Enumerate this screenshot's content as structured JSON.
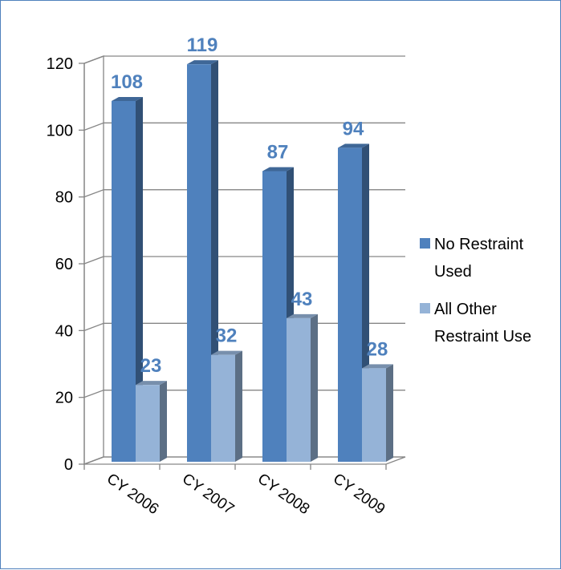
{
  "chart_data": {
    "type": "bar",
    "categories": [
      "CY 2006",
      "CY 2007",
      "CY 2008",
      "CY 2009"
    ],
    "series": [
      {
        "name": "No Restraint Used",
        "values": [
          108,
          119,
          87,
          94
        ],
        "color": "#4f81bd",
        "label_color": "#4f81bd"
      },
      {
        "name": "All Other Restraint Use",
        "values": [
          23,
          32,
          43,
          28
        ],
        "color": "#95b3d7",
        "label_color": "#4f81bd"
      }
    ],
    "ylim": [
      0,
      120
    ],
    "yticks": [
      0,
      20,
      40,
      60,
      80,
      100,
      120
    ],
    "grid": true,
    "legend_position": "right",
    "three_d": true,
    "title": "",
    "xlabel": "",
    "ylabel": ""
  },
  "legend": {
    "items": [
      {
        "lines": [
          "No Restraint",
          "Used"
        ],
        "color": "#4f81bd"
      },
      {
        "lines": [
          "All Other",
          "Restraint Use"
        ],
        "color": "#95b3d7"
      }
    ]
  }
}
